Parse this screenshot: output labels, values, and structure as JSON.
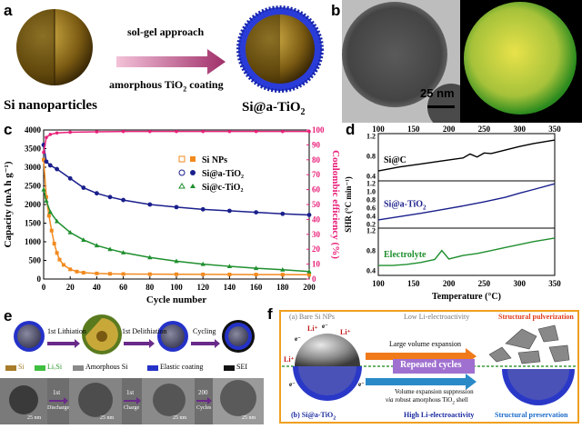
{
  "panel_labels": {
    "a": "a",
    "b": "b",
    "c": "c",
    "d": "d",
    "e": "e",
    "f": "f"
  },
  "panel_a": {
    "left_caption": "Si nanoparticles",
    "arrow_top": "sol-gel approach",
    "arrow_bottom_prefix": "amorphous TiO",
    "arrow_bottom_sub": "2",
    "arrow_bottom_suffix": " coating",
    "right_caption_prefix": "Si@a-TiO",
    "right_caption_sub": "2"
  },
  "panel_b": {
    "scale_bar": "25 nm"
  },
  "panel_c": {
    "chart_data": {
      "type": "scatter",
      "xlabel": "Cycle number",
      "ylabel": "Capacity (mA h g⁻¹)",
      "y2label": "Coulombic efficiency (%)",
      "xlim": [
        0,
        200
      ],
      "ylim": [
        0,
        4000
      ],
      "y2lim": [
        0,
        100
      ],
      "x_ticks": [
        "0",
        "20",
        "40",
        "60",
        "80",
        "100",
        "120",
        "140",
        "160",
        "180",
        "200"
      ],
      "y_ticks": [
        "0",
        "500",
        "1000",
        "1500",
        "2000",
        "2500",
        "3000",
        "3500",
        "4000"
      ],
      "y2_ticks": [
        "0",
        "10",
        "20",
        "30",
        "40",
        "50",
        "60",
        "70",
        "80",
        "90",
        "100"
      ],
      "legend": [
        "Si NPs",
        "Si@a-TiO₂",
        "Si@c-TiO₂"
      ],
      "legend_position": "top-right",
      "series": [
        {
          "name": "Si NPs",
          "color": "#f28a1e",
          "x": [
            0,
            2,
            4,
            6,
            8,
            10,
            12,
            15,
            20,
            25,
            30,
            40,
            50,
            60,
            80,
            100,
            120,
            140,
            160,
            180,
            200
          ],
          "y": [
            3200,
            2200,
            1700,
            1300,
            950,
            700,
            520,
            380,
            260,
            200,
            170,
            150,
            140,
            135,
            130,
            128,
            125,
            122,
            120,
            118,
            115
          ]
        },
        {
          "name": "Si@a-TiO₂",
          "color": "#1a1f8c",
          "x": [
            0,
            2,
            5,
            10,
            20,
            30,
            40,
            50,
            60,
            80,
            100,
            120,
            140,
            160,
            180,
            200
          ],
          "y": [
            3600,
            3150,
            3050,
            2950,
            2700,
            2450,
            2300,
            2200,
            2120,
            2000,
            1930,
            1870,
            1830,
            1790,
            1750,
            1720
          ]
        },
        {
          "name": "Si@c-TiO₂",
          "color": "#1f8f2e",
          "x": [
            0,
            2,
            5,
            10,
            20,
            30,
            40,
            50,
            60,
            80,
            100,
            120,
            140,
            160,
            180,
            200
          ],
          "y": [
            2400,
            2100,
            1800,
            1550,
            1250,
            1050,
            900,
            800,
            710,
            580,
            480,
            400,
            340,
            290,
            250,
            200
          ]
        },
        {
          "name": "Coulombic efficiency",
          "color": "#e8207a",
          "x": [
            0,
            2,
            5,
            10,
            20,
            40,
            60,
            80,
            100,
            120,
            140,
            160,
            180,
            200
          ],
          "y": [
            85,
            95,
            97,
            98,
            98.5,
            98.8,
            99,
            99,
            99,
            99,
            99,
            99,
            99,
            99
          ]
        }
      ]
    }
  },
  "panel_d": {
    "xlabel": "Temperature (°C)",
    "ylabel": "SHR (°C min⁻¹)",
    "x_ticks": [
      "100",
      "150",
      "200",
      "250",
      "300",
      "350"
    ],
    "rows": [
      {
        "label": "Si@C",
        "ticks": [
          "0.4",
          "0.6",
          "0.8",
          "1.0",
          "1.2"
        ],
        "color": "#000000",
        "x": [
          100,
          130,
          160,
          190,
          220,
          230,
          240,
          250,
          260,
          280,
          300,
          320,
          350
        ],
        "y": [
          0.5,
          0.58,
          0.64,
          0.7,
          0.76,
          0.84,
          0.78,
          0.86,
          0.85,
          0.92,
          0.99,
          1.05,
          1.12
        ]
      },
      {
        "label_prefix": "Si@a-TiO",
        "label_sub": "2",
        "ticks": [
          "0.2",
          "0.4",
          "0.6",
          "0.8",
          "1.0",
          "1.2"
        ],
        "color": "#1a1f8c",
        "x": [
          100,
          130,
          160,
          190,
          220,
          250,
          280,
          300,
          320,
          350
        ],
        "y": [
          0.3,
          0.38,
          0.46,
          0.55,
          0.64,
          0.74,
          0.85,
          0.95,
          1.04,
          1.18
        ]
      },
      {
        "label": "Electrolyte",
        "ticks": [
          "0.4",
          "0.6",
          "0.8",
          "1.0",
          "1.2"
        ],
        "color": "#1f8f2e",
        "x": [
          100,
          120,
          140,
          160,
          180,
          190,
          200,
          220,
          240,
          260,
          280,
          300,
          320,
          350
        ],
        "y": [
          0.5,
          0.5,
          0.52,
          0.56,
          0.62,
          0.8,
          0.63,
          0.7,
          0.74,
          0.8,
          0.86,
          0.92,
          0.98,
          1.05
        ]
      }
    ]
  },
  "panel_e": {
    "step1": "1st Lithiation",
    "step2": "1st Delithiation",
    "step3": "Cycling",
    "legend": [
      {
        "label": "Si",
        "color": "#a87c2a"
      },
      {
        "label": "LiₓSi",
        "color": "#3fbf3f"
      },
      {
        "label": "Amorphous Si",
        "color": "#8a8a8a"
      },
      {
        "label": "Elastic coating",
        "color": "#2432c8"
      },
      {
        "label": "SEI",
        "color": "#111111"
      }
    ],
    "tem_scale": "25 nm",
    "tem_arrows": [
      {
        "top": "1st",
        "bottom": "Discharge"
      },
      {
        "top": "1st",
        "bottom": "Charge"
      },
      {
        "top": "200",
        "bottom": "Cycles"
      }
    ]
  },
  "panel_f": {
    "top_left": "(a) Bare Si NPs",
    "top_mid": "Low Li-electroactivity",
    "top_right": "Structural pulverization",
    "arrow_top": "Large volume expansion",
    "center": "Repeated cycles",
    "bottom_line1": "Volume expansion suppression",
    "bottom_line2_prefix": "via",
    "bottom_line2_rest": " robust amorphous TiO",
    "bottom_line2_sub": "2",
    "bottom_line2_end": " shell",
    "bottom_left_prefix": "(b) Si@a-TiO",
    "bottom_left_sub": "2",
    "bottom_mid": "High Li-electroactivity",
    "bottom_right": "Structural preservation",
    "ion_label": "Li⁺",
    "electron_label": "e⁻"
  }
}
